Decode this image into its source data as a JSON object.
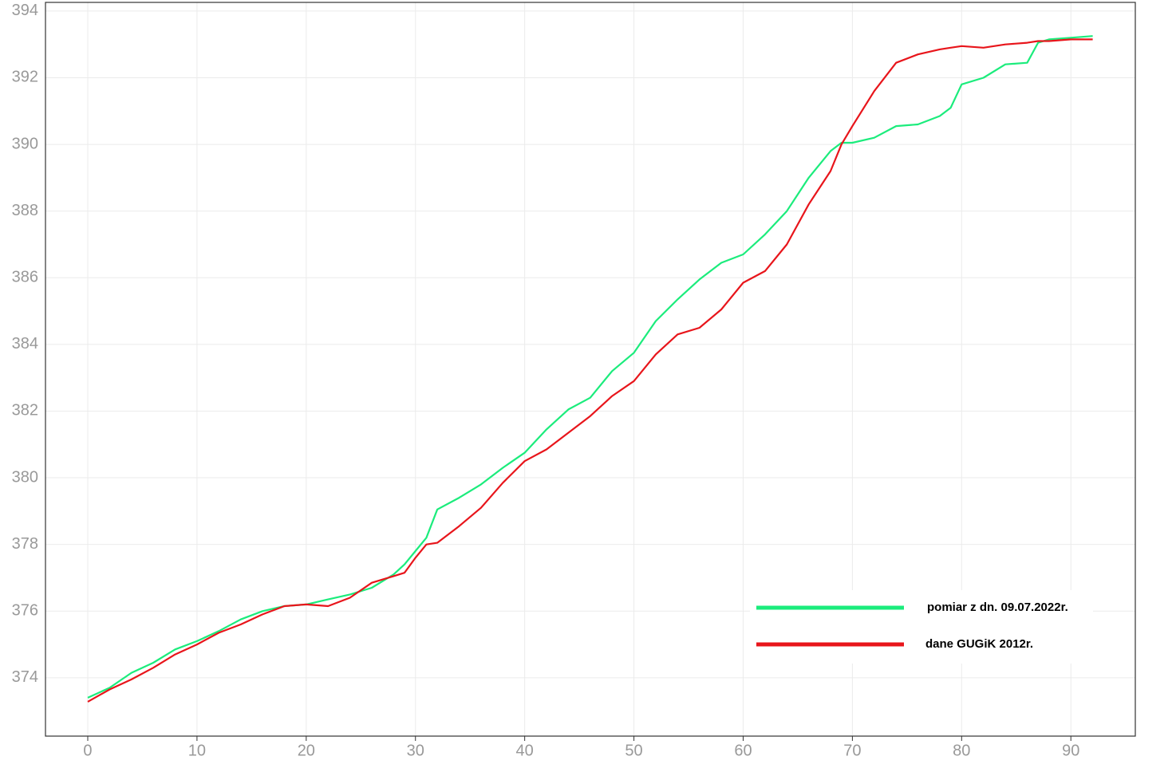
{
  "chart_data": {
    "type": "line",
    "x": [
      0,
      2,
      4,
      6,
      8,
      10,
      12,
      14,
      16,
      18,
      20,
      22,
      24,
      26,
      28,
      29,
      30,
      31,
      32,
      34,
      36,
      38,
      40,
      42,
      44,
      46,
      48,
      50,
      52,
      54,
      56,
      58,
      60,
      62,
      64,
      66,
      68,
      69,
      70,
      72,
      74,
      76,
      78,
      79,
      80,
      82,
      84,
      86,
      87,
      88,
      90,
      92
    ],
    "series": [
      {
        "name": "pomiar z dn. 09.07.2022r.",
        "color": "#1bec7c",
        "values": [
          373.4,
          373.7,
          374.15,
          374.45,
          374.85,
          375.1,
          375.4,
          375.75,
          376.0,
          376.15,
          376.2,
          376.35,
          376.5,
          376.7,
          377.1,
          377.4,
          377.8,
          378.2,
          379.05,
          379.4,
          379.8,
          380.3,
          380.75,
          381.45,
          382.05,
          382.4,
          383.2,
          383.75,
          384.7,
          385.35,
          385.95,
          386.45,
          386.7,
          387.3,
          388.0,
          389.0,
          389.8,
          390.05,
          390.05,
          390.2,
          390.55,
          390.6,
          390.85,
          391.1,
          391.8,
          392.0,
          392.4,
          392.45,
          393.05,
          393.15,
          393.2,
          393.25
        ]
      },
      {
        "name": "dane GUGiK 2012r.",
        "color": "#e8151b",
        "values": [
          373.28,
          373.65,
          373.95,
          374.3,
          374.7,
          375.0,
          375.35,
          375.6,
          375.9,
          376.15,
          376.2,
          376.15,
          376.4,
          376.85,
          377.05,
          377.15,
          377.6,
          378.0,
          378.05,
          378.55,
          379.1,
          379.85,
          380.5,
          380.85,
          381.35,
          381.85,
          382.45,
          382.9,
          383.7,
          384.3,
          384.5,
          385.05,
          385.85,
          386.2,
          387.0,
          388.2,
          389.2,
          390.0,
          390.55,
          391.6,
          392.45,
          392.7,
          392.85,
          392.9,
          392.95,
          392.9,
          393.0,
          393.05,
          393.1,
          393.1,
          393.15,
          393.15
        ]
      }
    ],
    "xlim": [
      -3.87,
      95.9
    ],
    "ylim": [
      372.25,
      394.26
    ],
    "xticks": [
      0,
      10,
      20,
      30,
      40,
      50,
      60,
      70,
      80,
      90
    ],
    "yticks": [
      374,
      376,
      378,
      380,
      382,
      384,
      386,
      388,
      390,
      392,
      394
    ],
    "grid": true,
    "legend": "bottom-right"
  }
}
